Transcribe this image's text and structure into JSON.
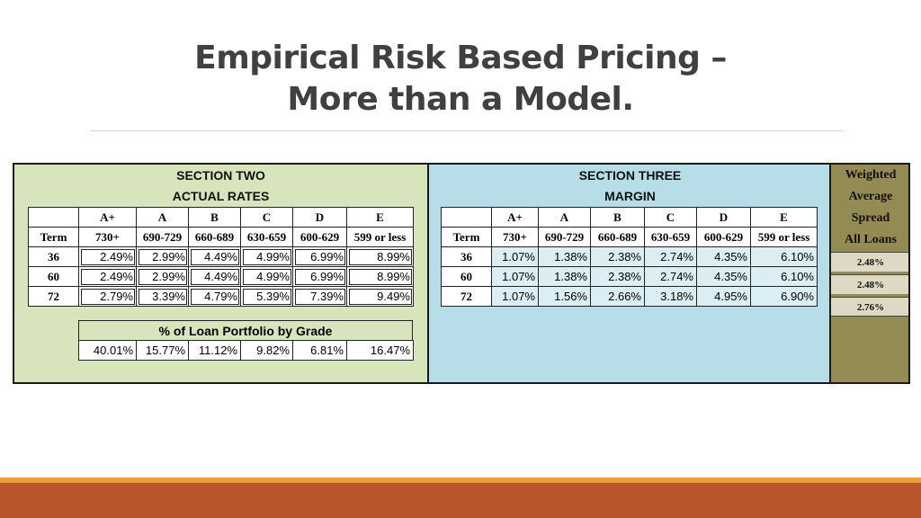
{
  "slide": {
    "title_line1": "Empirical Risk Based Pricing –",
    "title_line2": "More than a Model."
  },
  "section_two": {
    "title": "SECTION TWO",
    "subtitle": "ACTUAL RATES",
    "term_label": "Term",
    "grades": [
      "A+",
      "A",
      "B",
      "C",
      "D",
      "E"
    ],
    "score_ranges": [
      "730+",
      "690-729",
      "660-689",
      "630-659",
      "600-629",
      "599 or less"
    ],
    "rows": [
      {
        "term": "36",
        "values": [
          "2.49%",
          "2.99%",
          "4.49%",
          "4.99%",
          "6.99%",
          "8.99%"
        ]
      },
      {
        "term": "60",
        "values": [
          "2.49%",
          "2.99%",
          "4.49%",
          "4.99%",
          "6.99%",
          "8.99%"
        ]
      },
      {
        "term": "72",
        "values": [
          "2.79%",
          "3.39%",
          "4.79%",
          "5.39%",
          "7.39%",
          "9.49%"
        ]
      }
    ],
    "portfolio_title": "% of Loan Portfolio by Grade",
    "portfolio_values": [
      "40.01%",
      "15.77%",
      "11.12%",
      "9.82%",
      "6.81%",
      "16.47%"
    ]
  },
  "section_three": {
    "title": "SECTION THREE",
    "subtitle": "MARGIN",
    "term_label": "Term",
    "grades": [
      "A+",
      "A",
      "B",
      "C",
      "D",
      "E"
    ],
    "score_ranges": [
      "730+",
      "690-729",
      "660-689",
      "630-659",
      "600-629",
      "599 or less"
    ],
    "rows": [
      {
        "term": "36",
        "values": [
          "1.07%",
          "1.38%",
          "2.38%",
          "2.74%",
          "4.35%",
          "6.10%"
        ]
      },
      {
        "term": "60",
        "values": [
          "1.07%",
          "1.38%",
          "2.38%",
          "2.74%",
          "4.35%",
          "6.10%"
        ]
      },
      {
        "term": "72",
        "values": [
          "1.07%",
          "1.56%",
          "2.66%",
          "3.18%",
          "4.95%",
          "6.90%"
        ]
      }
    ]
  },
  "weighted": {
    "label_lines": [
      "Weighted",
      "Average",
      "Spread",
      "All Loans"
    ],
    "values": [
      "2.48%",
      "2.48%",
      "2.76%"
    ]
  },
  "colors": {
    "section_two_bg": "#d8e4bc",
    "section_three_bg": "#b7dde8",
    "weighted_bg": "#948a54",
    "footer_band": "#bb552b",
    "footer_accent": "#e8a13a"
  }
}
